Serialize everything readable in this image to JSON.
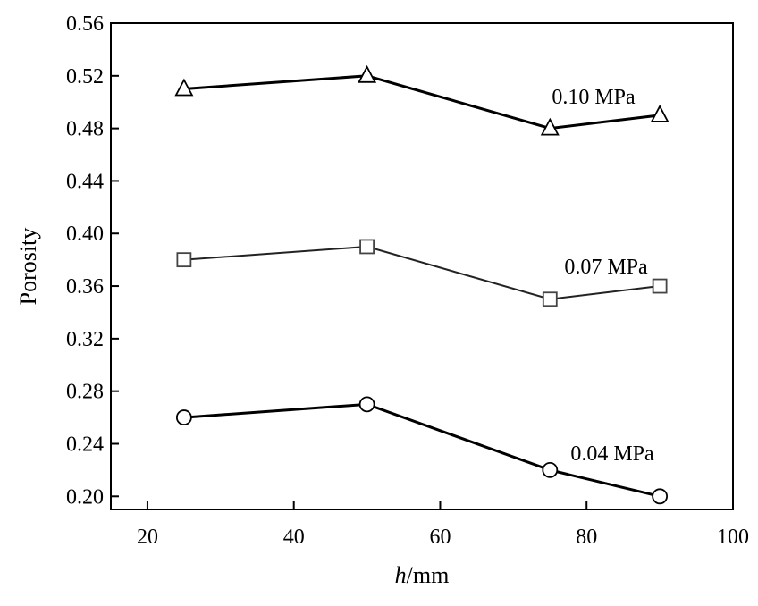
{
  "chart_data": {
    "type": "line",
    "xlabel_italic": "h",
    "xlabel_rest": "/mm",
    "ylabel": "Porosity",
    "xlim": [
      15,
      100
    ],
    "ylim": [
      0.19,
      0.56
    ],
    "xticks": [
      "20",
      "40",
      "60",
      "80",
      "100"
    ],
    "xtick_values": [
      20,
      40,
      60,
      80,
      100
    ],
    "yticks": [
      "0.20",
      "0.24",
      "0.28",
      "0.32",
      "0.36",
      "0.40",
      "0.44",
      "0.48",
      "0.52",
      "0.56"
    ],
    "ytick_values": [
      0.2,
      0.24,
      0.28,
      0.32,
      0.36,
      0.4,
      0.44,
      0.48,
      0.52,
      0.56
    ],
    "grid": false,
    "series": [
      {
        "name": "0.10 MPa",
        "marker": "triangle",
        "x": [
          25,
          50,
          75,
          90
        ],
        "y": [
          0.51,
          0.52,
          0.48,
          0.49
        ]
      },
      {
        "name": "0.07 MPa",
        "marker": "square",
        "x": [
          25,
          50,
          75,
          90
        ],
        "y": [
          0.38,
          0.39,
          0.35,
          0.36
        ]
      },
      {
        "name": "0.04 MPa",
        "marker": "circle",
        "x": [
          25,
          50,
          75,
          90
        ],
        "y": [
          0.26,
          0.27,
          0.22,
          0.2
        ]
      }
    ]
  }
}
